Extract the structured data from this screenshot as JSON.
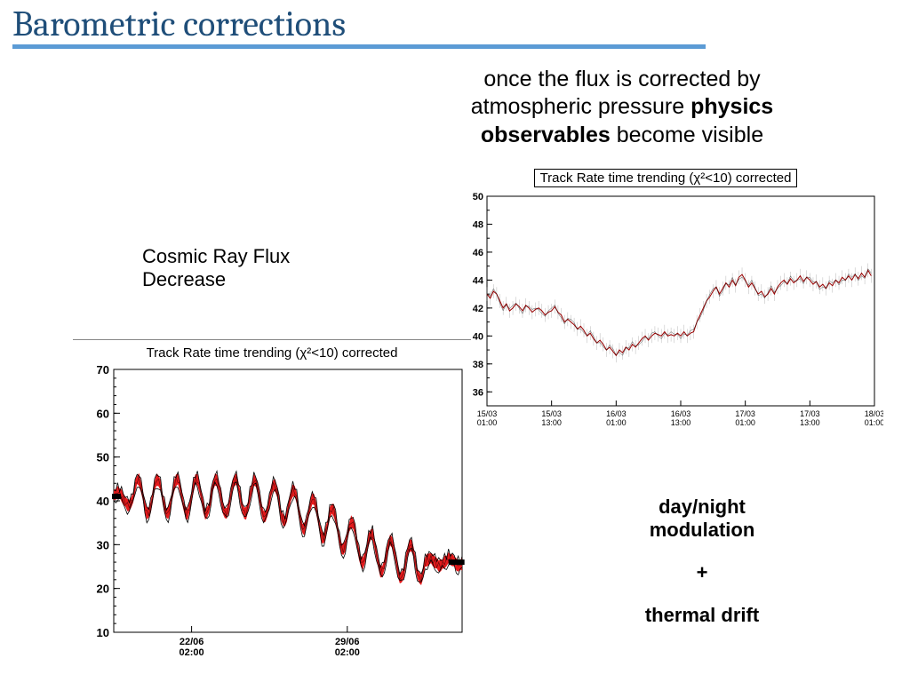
{
  "slide_title": "Barometric corrections",
  "intro": {
    "line1": "once the flux is corrected by",
    "line2_a": "atmospheric pressure ",
    "line2_b": "physics",
    "line3_a": "observables",
    "line3_b": " become visible"
  },
  "left_label": {
    "l1": "Cosmic Ray Flux",
    "l2": "Decrease"
  },
  "right_notes": {
    "a": "day/night",
    "b": "modulation",
    "c": "+",
    "d": "thermal drift"
  },
  "chart_right": {
    "type": "line",
    "title": "Track Rate time trending (χ²<10) corrected",
    "title_boxed": true,
    "bg": "#ffffff",
    "axis_color": "#000000",
    "series_color": "#990000",
    "error_color": "#888888",
    "line_width": 1,
    "y": {
      "lim": [
        35,
        50
      ],
      "ticks": [
        36,
        38,
        40,
        42,
        44,
        46,
        48,
        50
      ],
      "minor": 1,
      "label_fontsize": 11
    },
    "x": {
      "n": 120,
      "tick_idx": [
        0,
        20,
        40,
        60,
        80,
        100,
        120
      ],
      "tick_labels_top": [
        "15/03",
        "15/03",
        "16/03",
        "16/03",
        "17/03",
        "17/03",
        "18/03"
      ],
      "tick_labels_bot": [
        "01:00",
        "13:00",
        "01:00",
        "13:00",
        "01:00",
        "13:00",
        "01:00"
      ],
      "label_fontsize": 9
    },
    "values": [
      43.0,
      42.7,
      43.2,
      43.0,
      42.5,
      42.0,
      42.3,
      41.8,
      42.0,
      42.3,
      42.1,
      41.8,
      42.2,
      42.0,
      41.7,
      41.9,
      42.0,
      41.8,
      41.5,
      41.7,
      41.8,
      42.1,
      41.7,
      41.5,
      41.0,
      41.2,
      41.0,
      40.8,
      40.5,
      40.7,
      40.4,
      40.0,
      40.2,
      39.8,
      39.5,
      39.7,
      39.4,
      39.0,
      39.2,
      38.9,
      38.6,
      39.0,
      38.8,
      39.2,
      39.0,
      39.4,
      39.2,
      39.5,
      39.8,
      40.0,
      39.7,
      40.0,
      40.2,
      40.1,
      40.0,
      40.3,
      40.0,
      40.1,
      40.0,
      40.2,
      40.0,
      40.3,
      40.0,
      40.2,
      40.3,
      41.0,
      41.5,
      42.0,
      42.5,
      42.8,
      43.2,
      43.5,
      43.0,
      43.4,
      43.8,
      43.5,
      44.0,
      43.6,
      44.2,
      44.4,
      44.0,
      43.5,
      43.8,
      43.4,
      43.0,
      43.2,
      42.8,
      43.0,
      43.4,
      43.0,
      43.5,
      43.8,
      44.0,
      43.7,
      44.1,
      43.8,
      44.0,
      44.3,
      43.9,
      44.2,
      44.0,
      43.7,
      43.9,
      43.5,
      43.7,
      43.4,
      43.8,
      43.6,
      44.0,
      43.8,
      44.2,
      44.0,
      44.3,
      44.0,
      44.4,
      44.1,
      44.5,
      44.2,
      44.7,
      44.3
    ],
    "errors_std": 0.5
  },
  "chart_left": {
    "type": "line",
    "title": "Track Rate time trending (χ²<10) corrected",
    "title_boxed": false,
    "bg": "#ffffff",
    "axis_color": "#000000",
    "fill_color": "#e41a1c",
    "stroke_color": "#000000",
    "line_width": 1,
    "y": {
      "lim": [
        10,
        70
      ],
      "ticks": [
        10,
        20,
        30,
        40,
        50,
        60,
        70
      ],
      "minor": 2,
      "label_fontsize": 13
    },
    "x": {
      "n": 180,
      "tick_idx": [
        40,
        120
      ],
      "tick_labels_top": [
        "22/06",
        "29/06"
      ],
      "tick_labels_bot": [
        "02:00",
        "02:00"
      ],
      "label_fontsize": 11
    },
    "baseline": [
      41,
      41,
      40.8,
      40.6,
      40.5,
      40.4,
      40.3,
      40.2,
      40.2,
      40.1,
      41,
      41,
      41,
      41,
      41,
      41,
      41,
      41,
      41,
      41,
      41,
      41,
      41,
      41,
      41,
      41,
      41,
      41,
      41,
      41,
      41,
      41,
      41,
      41,
      41,
      41,
      41,
      41,
      41,
      41,
      41,
      41,
      41,
      41,
      41,
      41,
      41,
      41,
      41,
      41,
      41,
      41,
      41,
      41,
      41,
      41,
      41,
      41,
      41,
      41,
      41,
      41,
      41,
      41,
      41,
      41,
      41,
      41,
      41,
      41,
      41,
      40.9,
      40.8,
      40.7,
      40.6,
      40.5,
      40.4,
      40.3,
      40.2,
      40.1,
      40,
      39.9,
      39.8,
      39.7,
      39.6,
      39.5,
      39.4,
      39.3,
      39.2,
      39.1,
      39,
      38.8,
      38.6,
      38.4,
      38.2,
      38,
      37.8,
      37.6,
      37.4,
      37.2,
      37,
      36.8,
      36.6,
      36.4,
      36.2,
      36,
      35.8,
      35.6,
      35.4,
      35.2,
      35,
      34.7,
      34.4,
      34.1,
      33.8,
      33.5,
      33.2,
      32.9,
      32.6,
      32.3,
      32,
      31.7,
      31.4,
      31.1,
      30.8,
      30.5,
      30.2,
      29.9,
      29.6,
      29.3,
      29,
      28.8,
      28.6,
      28.4,
      28.2,
      28,
      27.9,
      27.8,
      27.7,
      27.6,
      27.5,
      27.3,
      27.1,
      26.9,
      26.7,
      26.5,
      26.4,
      26.3,
      26.2,
      26.1,
      26,
      26,
      26,
      26,
      26,
      26,
      26,
      26,
      26,
      26,
      26,
      26,
      26,
      26,
      26,
      26,
      26,
      26,
      26,
      26,
      26,
      26,
      26,
      26,
      26,
      26,
      26,
      26,
      26,
      26
    ],
    "amplitude": 4.0,
    "osc_period": 10,
    "noise_amp": 1.5
  }
}
